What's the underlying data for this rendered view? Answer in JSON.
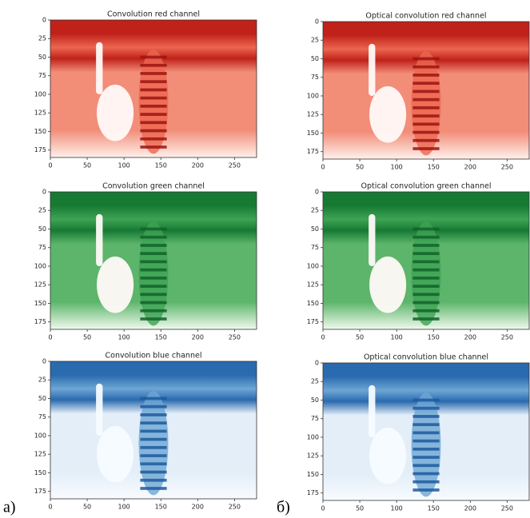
{
  "chart_data": [
    {
      "type": "image",
      "title": "Convolution red channel",
      "color": "red",
      "xlim": [
        0,
        280
      ],
      "ylim": [
        185,
        0
      ],
      "xticks": [
        0,
        50,
        100,
        150,
        200,
        250
      ],
      "yticks": [
        0,
        25,
        50,
        75,
        100,
        125,
        150,
        175
      ]
    },
    {
      "type": "image",
      "title": "Convolution green channel",
      "color": "green",
      "xlim": [
        0,
        280
      ],
      "ylim": [
        185,
        0
      ],
      "xticks": [
        0,
        50,
        100,
        150,
        200,
        250
      ],
      "yticks": [
        0,
        25,
        50,
        75,
        100,
        125,
        150,
        175
      ]
    },
    {
      "type": "image",
      "title": "Convolution blue channel",
      "color": "blue",
      "xlim": [
        0,
        280
      ],
      "ylim": [
        185,
        0
      ],
      "xticks": [
        0,
        50,
        100,
        150,
        200,
        250
      ],
      "yticks": [
        0,
        25,
        50,
        75,
        100,
        125,
        150,
        175
      ]
    },
    {
      "type": "image",
      "title": "Optical convolution red channel",
      "color": "red",
      "xlim": [
        0,
        280
      ],
      "ylim": [
        185,
        0
      ],
      "xticks": [
        0,
        50,
        100,
        150,
        200,
        250
      ],
      "yticks": [
        0,
        25,
        50,
        75,
        100,
        125,
        150,
        175
      ]
    },
    {
      "type": "image",
      "title": "Optical convolution green channel",
      "color": "green",
      "xlim": [
        0,
        280
      ],
      "ylim": [
        185,
        0
      ],
      "xticks": [
        0,
        50,
        100,
        150,
        200,
        250
      ],
      "yticks": [
        0,
        25,
        50,
        75,
        100,
        125,
        150,
        175
      ]
    },
    {
      "type": "image",
      "title": "Optical convolution blue channel",
      "color": "blue",
      "xlim": [
        0,
        280
      ],
      "ylim": [
        185,
        0
      ],
      "xticks": [
        0,
        50,
        100,
        150,
        200,
        250
      ],
      "yticks": [
        0,
        25,
        50,
        75,
        100,
        125,
        150,
        175
      ]
    }
  ],
  "panel_labels": [
    "a)",
    "б)"
  ]
}
